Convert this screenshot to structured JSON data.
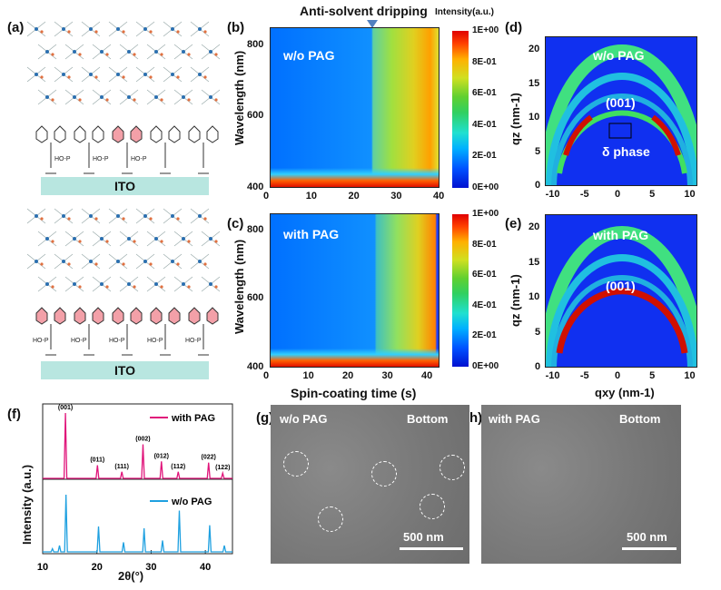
{
  "panel_labels": {
    "a": "(a)",
    "b": "(b)",
    "c": "(c)",
    "d": "(d)",
    "e": "(e)",
    "f": "(f)",
    "g": "(g)",
    "h": "(h)"
  },
  "schematic": {
    "substrate_label": "ITO",
    "phosphonic_label": "HO-P"
  },
  "colors": {
    "with_pag": "#e0147a",
    "wo_pag": "#1ea0e0",
    "substrate": "#b8e6e0",
    "carbazole_highlight": "#f3a0a8"
  },
  "panel_b": {
    "annotation": "Anti-solvent dripping",
    "condition": "w/o PAG",
    "colorbar_title": "Intensity(a.u.)"
  },
  "panel_c": {
    "condition": "with PAG"
  },
  "panel_d": {
    "condition": "w/o PAG",
    "peak_label": "(001)",
    "phase_label": "δ phase"
  },
  "panel_e": {
    "condition": "with PAG",
    "peak_label": "(001)"
  },
  "panel_g": {
    "condition": "w/o PAG",
    "location": "Bottom",
    "scale_bar": "500 nm"
  },
  "panel_h": {
    "condition": "with PAG",
    "location": "Bottom",
    "scale_bar": "500 nm"
  },
  "chart_data": [
    {
      "panel": "b",
      "type": "heatmap",
      "xlabel": "",
      "ylabel": "Wavelength (nm)",
      "xlim": [
        0,
        40
      ],
      "ylim": [
        400,
        850
      ],
      "xticks": [
        "0",
        "10",
        "20",
        "30",
        "40"
      ],
      "yticks": [
        "400",
        "600",
        "800"
      ],
      "colorbar_ticks": [
        "1E+00",
        "8E-01",
        "6E-01",
        "4E-01",
        "2E-01",
        "0E+00"
      ],
      "dripping_time": 25
    },
    {
      "panel": "c",
      "type": "heatmap",
      "xlabel": "Spin-coating time (s)",
      "ylabel": "Wavelength (nm)",
      "xlim": [
        0,
        43
      ],
      "ylim": [
        400,
        850
      ],
      "xticks": [
        "0",
        "10",
        "20",
        "30",
        "40"
      ],
      "yticks": [
        "400",
        "600",
        "800"
      ],
      "colorbar_ticks": [
        "1E+00",
        "8E-01",
        "6E-01",
        "4E-01",
        "2E-01",
        "0E+00"
      ],
      "dripping_time": 26
    },
    {
      "panel": "d",
      "type": "heatmap",
      "xlabel": "",
      "ylabel": "qz (nm-1)",
      "xlim": [
        -11,
        11
      ],
      "ylim": [
        0,
        22
      ],
      "xticks": [
        "-10",
        "-5",
        "0",
        "5",
        "10"
      ],
      "yticks": [
        "0",
        "5",
        "10",
        "15",
        "20"
      ]
    },
    {
      "panel": "e",
      "type": "heatmap",
      "xlabel": "qxy (nm-1)",
      "ylabel": "qz (nm-1)",
      "xlim": [
        -11,
        11
      ],
      "ylim": [
        0,
        22
      ],
      "xticks": [
        "-10",
        "-5",
        "0",
        "5",
        "10"
      ],
      "yticks": [
        "0",
        "5",
        "10",
        "15",
        "20"
      ]
    },
    {
      "panel": "f",
      "type": "line",
      "xlabel": "2θ(°)",
      "ylabel": "Intensity (a.u.)",
      "xlim": [
        10,
        45
      ],
      "xticks": [
        "10",
        "20",
        "30",
        "40"
      ],
      "series": [
        {
          "name": "with PAG",
          "peaks": [
            {
              "x": 14.2,
              "y": 1.0,
              "label": "(001)"
            },
            {
              "x": 20.1,
              "y": 0.2,
              "label": "(011)"
            },
            {
              "x": 24.6,
              "y": 0.1,
              "label": "(111)"
            },
            {
              "x": 28.5,
              "y": 0.52,
              "label": "(002)"
            },
            {
              "x": 31.9,
              "y": 0.26,
              "label": "(012)"
            },
            {
              "x": 35.0,
              "y": 0.1,
              "label": "(112)"
            },
            {
              "x": 40.6,
              "y": 0.24,
              "label": "(022)"
            },
            {
              "x": 43.2,
              "y": 0.08,
              "label": "(122)"
            }
          ]
        },
        {
          "name": "w/o PAG",
          "peaks": [
            {
              "x": 11.8,
              "y": 0.05
            },
            {
              "x": 13.1,
              "y": 0.1
            },
            {
              "x": 14.3,
              "y": 0.9
            },
            {
              "x": 20.3,
              "y": 0.4
            },
            {
              "x": 24.9,
              "y": 0.15
            },
            {
              "x": 28.7,
              "y": 0.37
            },
            {
              "x": 32.1,
              "y": 0.18
            },
            {
              "x": 35.2,
              "y": 0.65
            },
            {
              "x": 40.8,
              "y": 0.42
            },
            {
              "x": 43.5,
              "y": 0.1
            }
          ]
        }
      ]
    }
  ]
}
